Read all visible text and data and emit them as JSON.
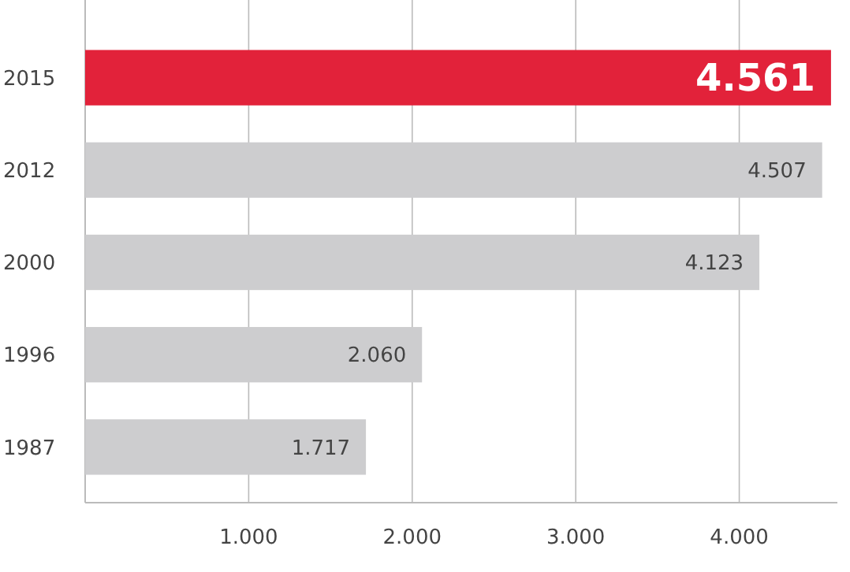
{
  "chart_data": {
    "type": "bar",
    "orientation": "horizontal",
    "categories": [
      "2015",
      "2012",
      "2000",
      "1996",
      "1987"
    ],
    "values": [
      4561,
      4507,
      4123,
      2060,
      1717
    ],
    "colors": [
      "#e2223a",
      "#cdcdcf",
      "#cdcdcf",
      "#cdcdcf",
      "#cdcdcf"
    ],
    "value_labels": [
      "4.561",
      "4.507",
      "4.123",
      "2.060",
      "1.717"
    ],
    "xlim": [
      0,
      4600
    ],
    "xticks": [
      {
        "value": 1000,
        "label": "1.000"
      },
      {
        "value": 2000,
        "label": "2.000"
      },
      {
        "value": 3000,
        "label": "3.000"
      },
      {
        "value": 4000,
        "label": "4.000"
      }
    ],
    "grid": "x"
  }
}
